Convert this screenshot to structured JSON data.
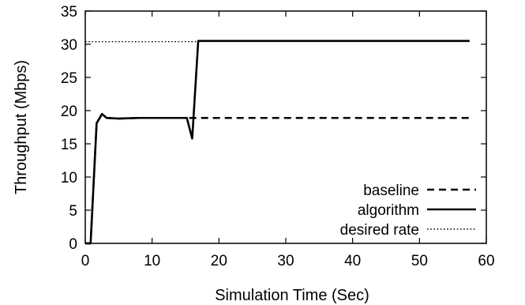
{
  "chart_data": {
    "type": "line",
    "title": "",
    "xlabel": "Simulation Time (Sec)",
    "ylabel": "Throughput (Mbps)",
    "xlim": [
      0,
      60
    ],
    "ylim": [
      0,
      35
    ],
    "xticks": [
      0,
      10,
      20,
      30,
      40,
      50,
      60
    ],
    "yticks": [
      0,
      5,
      10,
      15,
      20,
      25,
      30,
      35
    ],
    "grid": false,
    "legend_position": "bottom-right",
    "series": [
      {
        "name": "baseline",
        "style": "dashed",
        "color": "#000000",
        "x": [
          0,
          0.8,
          1.7,
          2.5,
          3.2,
          5,
          8,
          10,
          12,
          15.2,
          16,
          16.9,
          20,
          30,
          40,
          50,
          57.5
        ],
        "y": [
          0,
          0,
          18.1,
          19.5,
          18.9,
          18.8,
          18.9,
          18.9,
          18.9,
          18.9,
          18.9,
          18.9,
          18.9,
          18.9,
          18.9,
          18.9,
          18.9
        ]
      },
      {
        "name": "algorithm",
        "style": "solid",
        "color": "#000000",
        "x": [
          0,
          0.8,
          1.7,
          2.5,
          3.2,
          5,
          8,
          10,
          12,
          15.2,
          16,
          16.9,
          20,
          30,
          40,
          50,
          57.5
        ],
        "y": [
          0,
          0,
          18.1,
          19.5,
          18.9,
          18.8,
          18.9,
          18.9,
          18.9,
          18.9,
          15.8,
          30.5,
          30.5,
          30.5,
          30.5,
          30.5,
          30.5
        ]
      },
      {
        "name": "desired rate",
        "style": "dotted",
        "color": "#000000",
        "x": [
          0,
          16.9
        ],
        "y": [
          30.4,
          30.4
        ]
      }
    ]
  }
}
